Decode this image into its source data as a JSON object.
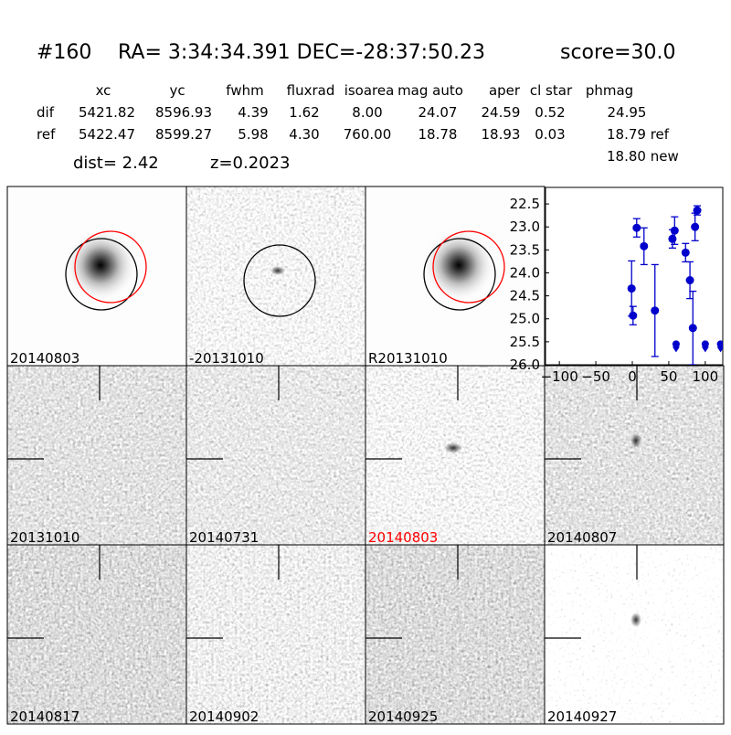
{
  "header": {
    "id": "#160",
    "coords": "RA= 3:34:34.391 DEC=-28:37:50.23",
    "score": "score=30.0",
    "dist": "dist=  2.42",
    "z": "z=0.2023",
    "new_mag": "18.80 new"
  },
  "table": {
    "columns": [
      "xc",
      "yc",
      "fwhm",
      "fluxrad",
      "isoarea",
      "mag auto",
      "aper",
      "cl star",
      "phmag"
    ],
    "rows": [
      [
        "dif",
        "5421.82",
        "8596.93",
        "4.39",
        "1.62",
        "8.00",
        "24.07",
        "24.59",
        "0.52",
        "24.95"
      ],
      [
        "ref",
        "5422.47",
        "8599.27",
        "5.98",
        "4.30",
        "760.00",
        "18.78",
        "18.93",
        "0.03",
        "18.79 ref"
      ]
    ]
  },
  "panels": [
    {
      "label": "20140803"
    },
    {
      "label": "-20131010"
    },
    {
      "label": "R20131010"
    },
    {
      "label": "20131010"
    },
    {
      "label": "20140731"
    },
    {
      "label": "20140803",
      "color": "#ff0000"
    },
    {
      "label": "20140807"
    },
    {
      "label": "20140817"
    },
    {
      "label": "20140902"
    },
    {
      "label": "20140925"
    },
    {
      "label": "20140927"
    }
  ],
  "chart_data": {
    "type": "scatter",
    "color": "#0000cc",
    "x": [
      -1,
      1,
      6,
      16,
      31,
      55,
      58,
      73,
      79,
      83,
      86,
      89
    ],
    "values": [
      24.34,
      24.93,
      23.02,
      23.42,
      24.82,
      23.26,
      23.08,
      23.56,
      24.16,
      25.2,
      23.0,
      22.64
    ],
    "errors": [
      0.6,
      0.2,
      0.2,
      0.4,
      1.0,
      0.2,
      0.3,
      0.2,
      0.4,
      0.8,
      0.3,
      0.1
    ],
    "limit_x": [
      60,
      100,
      121
    ],
    "limit_values": [
      25.55,
      25.55,
      25.55
    ],
    "xlim": [
      -119,
      124
    ],
    "ylim": [
      26.0,
      22.14
    ],
    "xticks": [
      {
        "value": -100,
        "label": "−100"
      },
      {
        "value": -50,
        "label": "−50"
      },
      0,
      50,
      100
    ],
    "yticks": [
      {
        "value": 22.5,
        "label": "22.5"
      },
      {
        "value": 23.0,
        "label": "23.0"
      },
      {
        "value": 23.5,
        "label": "23.5"
      },
      {
        "value": 24.0,
        "label": "24.0"
      },
      {
        "value": 24.5,
        "label": "24.5"
      },
      {
        "value": 25.0,
        "label": "25.0"
      },
      {
        "value": 25.5,
        "label": "25.5"
      },
      {
        "value": 26.0,
        "label": "26.0"
      }
    ]
  }
}
